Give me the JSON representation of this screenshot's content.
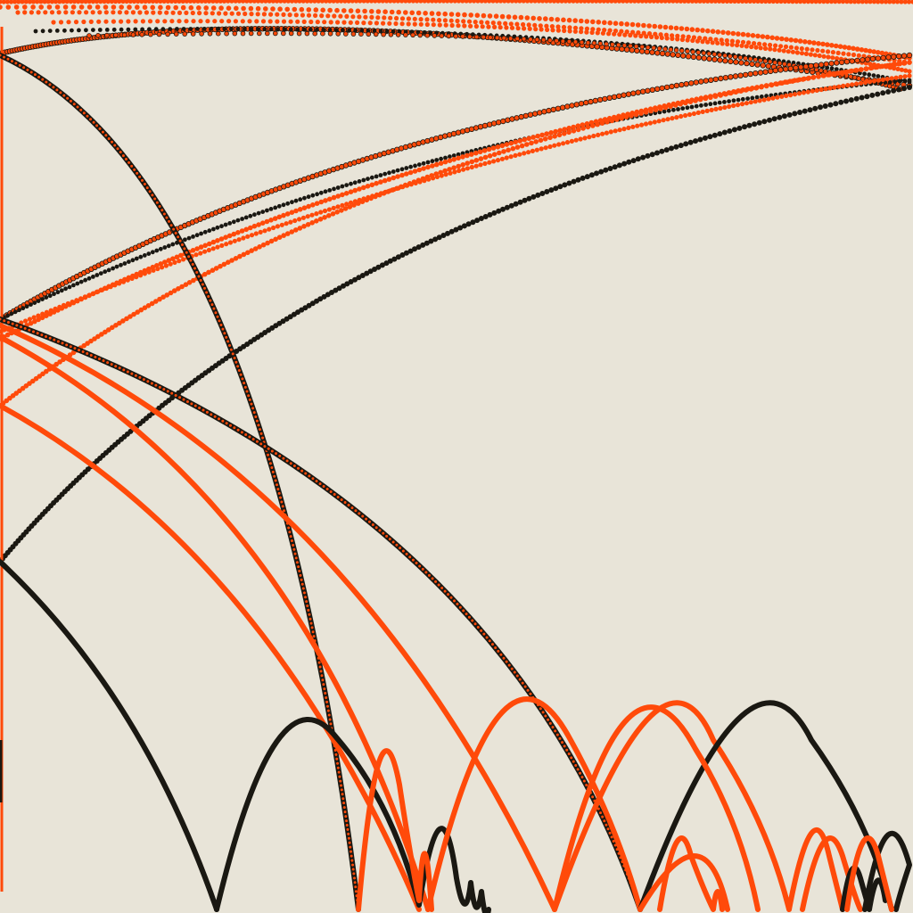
{
  "artwork": {
    "background": "#e8e4d8",
    "palette": {
      "orange": "#ff4a0a",
      "black": "#1a1812",
      "brown": "#6a2a14"
    },
    "element_types": [
      "bouncing-trajectory",
      "ballistic-arc",
      "dotted-trail"
    ]
  }
}
